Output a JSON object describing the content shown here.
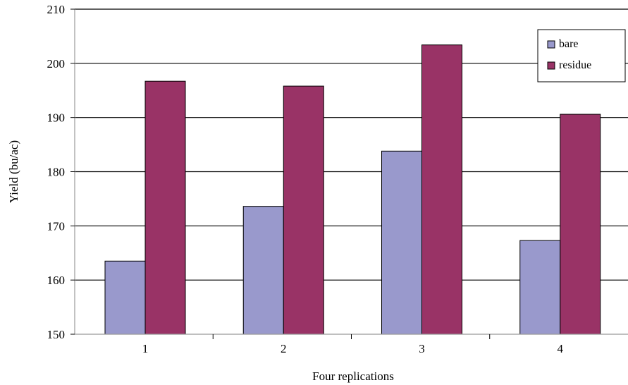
{
  "chart_data": {
    "type": "bar",
    "categories": [
      "1",
      "2",
      "3",
      "4"
    ],
    "series": [
      {
        "name": "bare",
        "values": [
          163.5,
          173.6,
          183.8,
          167.3
        ],
        "color": "#9999cc"
      },
      {
        "name": "residue",
        "values": [
          196.7,
          195.8,
          203.4,
          190.6
        ],
        "color": "#993366"
      }
    ],
    "xlabel": "Four replications",
    "ylabel": "Yield (bu/ac)",
    "ylim": [
      150,
      210
    ],
    "yticks": [
      "150",
      "160",
      "170",
      "180",
      "190",
      "200",
      "210"
    ],
    "grid": true,
    "legend_position": "top-right"
  }
}
